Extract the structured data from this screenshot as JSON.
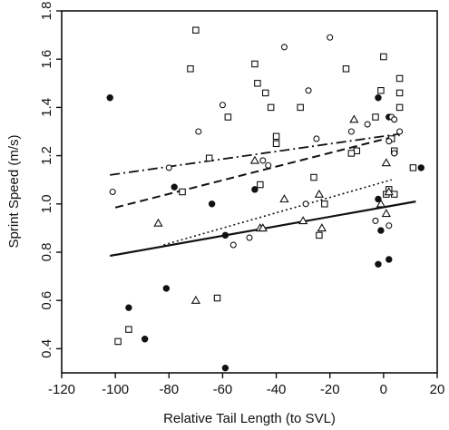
{
  "chart_data": {
    "type": "scatter",
    "xlabel": "Relative Tail Length (to SVL)",
    "ylabel": "Sprint Speed (m/s)",
    "xlim": [
      -120,
      20
    ],
    "ylim": [
      0.3,
      1.8
    ],
    "xticks": [
      -120,
      -100,
      -80,
      -60,
      -40,
      -20,
      0,
      20
    ],
    "yticks": [
      0.4,
      0.6,
      0.8,
      1.0,
      1.2,
      1.4,
      1.6,
      1.8
    ],
    "grid": false,
    "series": [
      {
        "marker": "filled-circle",
        "points": [
          [
            -102,
            1.44
          ],
          [
            -95,
            0.57
          ],
          [
            -89,
            0.44
          ],
          [
            -81,
            0.65
          ],
          [
            -78,
            1.07
          ],
          [
            -64,
            1.0
          ],
          [
            -59,
            0.87
          ],
          [
            -59,
            0.32
          ],
          [
            -48,
            1.06
          ],
          [
            -2,
            1.02
          ],
          [
            -2,
            1.44
          ],
          [
            -1,
            0.89
          ],
          [
            -2,
            0.75
          ],
          [
            2,
            1.36
          ],
          [
            2,
            0.77
          ],
          [
            14,
            1.15
          ]
        ],
        "fit": {
          "style": "solid",
          "x": [
            -102,
            12
          ],
          "y": [
            0.785,
            1.01
          ]
        }
      },
      {
        "marker": "open-square",
        "points": [
          [
            -70,
            1.72
          ],
          [
            -72,
            1.56
          ],
          [
            -99,
            0.43
          ],
          [
            -95,
            0.48
          ],
          [
            -75,
            1.05
          ],
          [
            -65,
            1.19
          ],
          [
            -62,
            0.61
          ],
          [
            -58,
            1.36
          ],
          [
            -48,
            1.58
          ],
          [
            -47,
            1.5
          ],
          [
            -44,
            1.46
          ],
          [
            -42,
            1.4
          ],
          [
            -40,
            1.28
          ],
          [
            -40,
            1.25
          ],
          [
            -46,
            1.08
          ],
          [
            -31,
            1.4
          ],
          [
            -26,
            1.11
          ],
          [
            -24,
            0.87
          ],
          [
            -22,
            1.0
          ],
          [
            -14,
            1.56
          ],
          [
            -10,
            1.22
          ],
          [
            -12,
            1.21
          ],
          [
            -3,
            1.36
          ],
          [
            -1,
            1.47
          ],
          [
            0,
            1.61
          ],
          [
            3,
            1.27
          ],
          [
            2,
            1.06
          ],
          [
            4,
            1.04
          ],
          [
            6,
            1.52
          ],
          [
            6,
            1.46
          ],
          [
            6,
            1.4
          ],
          [
            1,
            1.04
          ],
          [
            11,
            1.15
          ],
          [
            4,
            1.22
          ]
        ],
        "fit": {
          "style": "dashed",
          "x": [
            -100,
            6
          ],
          "y": [
            0.985,
            1.285
          ]
        }
      },
      {
        "marker": "open-circle",
        "points": [
          [
            -101,
            1.05
          ],
          [
            -80,
            1.15
          ],
          [
            -69,
            1.3
          ],
          [
            -60,
            1.41
          ],
          [
            -56,
            0.83
          ],
          [
            -50,
            0.86
          ],
          [
            -45,
            1.18
          ],
          [
            -43,
            1.16
          ],
          [
            -37,
            1.65
          ],
          [
            -29,
            1.0
          ],
          [
            -28,
            1.47
          ],
          [
            -25,
            1.27
          ],
          [
            -20,
            1.69
          ],
          [
            -12,
            1.3
          ],
          [
            -6,
            1.33
          ],
          [
            -3,
            0.93
          ],
          [
            2,
            1.26
          ],
          [
            3,
            1.36
          ],
          [
            4,
            1.21
          ],
          [
            6,
            1.3
          ],
          [
            2,
            0.91
          ],
          [
            4,
            1.35
          ]
        ],
        "fit": {
          "style": "dash-dot",
          "x": [
            -102,
            6
          ],
          "y": [
            1.12,
            1.29
          ]
        }
      },
      {
        "marker": "open-triangle",
        "points": [
          [
            -84,
            0.92
          ],
          [
            -70,
            0.6
          ],
          [
            -48,
            1.18
          ],
          [
            -46,
            0.9
          ],
          [
            -45,
            0.9
          ],
          [
            -37,
            1.02
          ],
          [
            -30,
            0.93
          ],
          [
            -24,
            1.04
          ],
          [
            -23,
            0.9
          ],
          [
            -11,
            1.35
          ],
          [
            -1,
            1.0
          ],
          [
            1,
            1.17
          ],
          [
            1,
            0.96
          ],
          [
            2,
            1.05
          ]
        ],
        "fit": {
          "style": "dotted",
          "x": [
            -82,
            3
          ],
          "y": [
            0.83,
            1.1
          ]
        }
      }
    ]
  }
}
